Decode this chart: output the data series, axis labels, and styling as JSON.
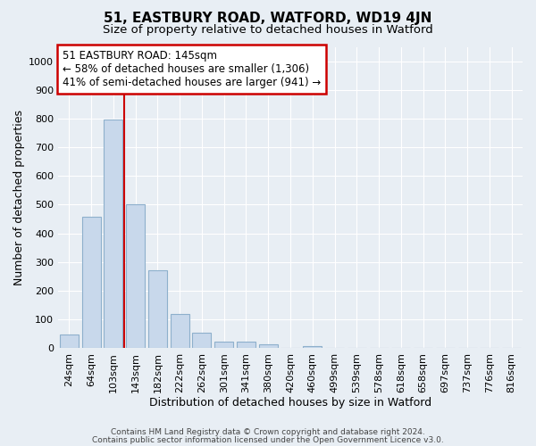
{
  "title": "51, EASTBURY ROAD, WATFORD, WD19 4JN",
  "subtitle": "Size of property relative to detached houses in Watford",
  "xlabel": "Distribution of detached houses by size in Watford",
  "ylabel": "Number of detached properties",
  "bar_labels": [
    "24sqm",
    "64sqm",
    "103sqm",
    "143sqm",
    "182sqm",
    "222sqm",
    "262sqm",
    "301sqm",
    "341sqm",
    "380sqm",
    "420sqm",
    "460sqm",
    "499sqm",
    "539sqm",
    "578sqm",
    "618sqm",
    "658sqm",
    "697sqm",
    "737sqm",
    "776sqm",
    "816sqm"
  ],
  "bar_values": [
    47,
    457,
    798,
    500,
    270,
    120,
    55,
    22,
    22,
    12,
    0,
    8,
    0,
    0,
    0,
    0,
    0,
    0,
    0,
    0,
    0
  ],
  "bar_color": "#c8d8eb",
  "bar_edgecolor": "#8eb0cc",
  "vline_x_idx": 3,
  "vline_color": "#cc0000",
  "annotation_title": "51 EASTBURY ROAD: 145sqm",
  "annotation_line1": "← 58% of detached houses are smaller (1,306)",
  "annotation_line2": "41% of semi-detached houses are larger (941) →",
  "annotation_box_facecolor": "#ffffff",
  "annotation_box_edgecolor": "#cc0000",
  "ylim": [
    0,
    1050
  ],
  "yticks": [
    0,
    100,
    200,
    300,
    400,
    500,
    600,
    700,
    800,
    900,
    1000
  ],
  "footer1": "Contains HM Land Registry data © Crown copyright and database right 2024.",
  "footer2": "Contains public sector information licensed under the Open Government Licence v3.0.",
  "fig_bg_color": "#e8eef4",
  "plot_bg_color": "#e8eef4",
  "grid_color": "#ffffff",
  "title_fontsize": 11,
  "subtitle_fontsize": 9.5,
  "ylabel_fontsize": 9,
  "xlabel_fontsize": 9,
  "tick_fontsize": 8,
  "footer_fontsize": 6.5,
  "annotation_fontsize": 8.5
}
